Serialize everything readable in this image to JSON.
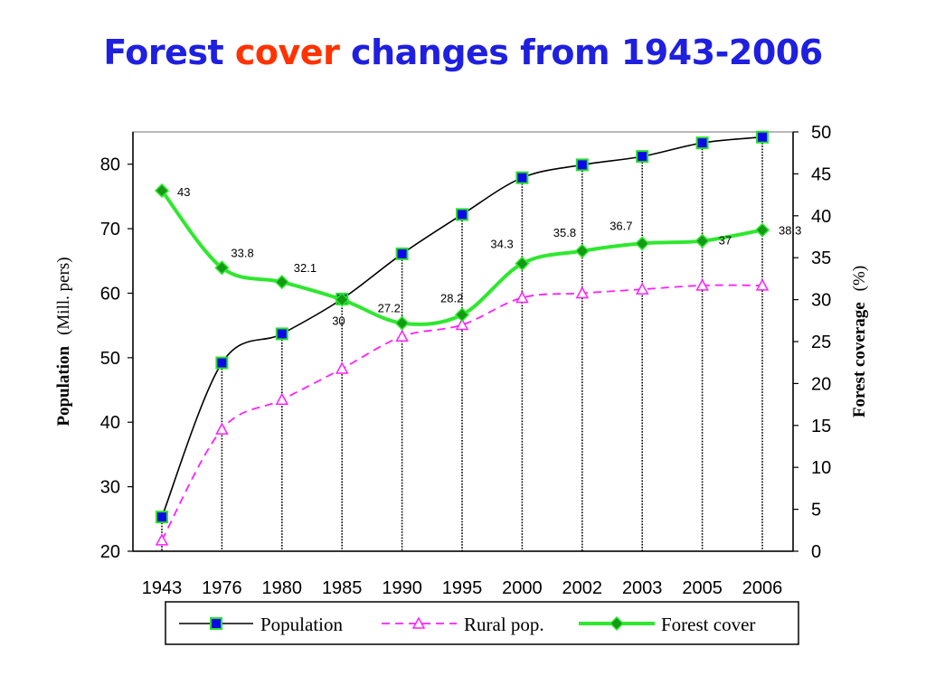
{
  "title": {
    "part1": "Forest ",
    "part2": "cover",
    "part3": " changes from 1943-2006"
  },
  "colors": {
    "title": "#1f1fe0",
    "title_highlight": "#ff3300",
    "population_line": "#000000",
    "population_marker_fill": "#0a0ae6",
    "population_marker_edge": "#2adf2a",
    "rural_line": "#ff1fff",
    "forest_line": "#2ee82e",
    "forest_marker": "#149a14"
  },
  "chart_data": {
    "type": "line",
    "categories": [
      "1943",
      "1976",
      "1980",
      "1985",
      "1990",
      "1995",
      "2000",
      "2002",
      "2003",
      "2005",
      "2006"
    ],
    "y_left": {
      "label_bold": "Population",
      "label_unit": "(Mill. pers)",
      "range": [
        20,
        85
      ],
      "ticks": [
        "20",
        "30",
        "40",
        "50",
        "60",
        "70",
        "80"
      ]
    },
    "y_right": {
      "label_bold": "Forest coverage",
      "label_unit": "(%)",
      "range": [
        0,
        50
      ],
      "ticks": [
        "0",
        "5",
        "10",
        "15",
        "20",
        "25",
        "30",
        "35",
        "40",
        "45",
        "50"
      ]
    },
    "series": [
      {
        "name": "Population",
        "axis": "left",
        "values": [
          25.3,
          49.2,
          53.7,
          59.1,
          66.1,
          72.2,
          77.9,
          79.9,
          81.2,
          83.3,
          84.2
        ]
      },
      {
        "name": "Rural pop.",
        "axis": "left",
        "values": [
          21.7,
          38.9,
          43.5,
          48.3,
          53.3,
          55.1,
          59.3,
          60.0,
          60.6,
          61.2,
          61.2
        ]
      },
      {
        "name": "Forest cover",
        "axis": "right",
        "values": [
          43,
          33.8,
          32.1,
          30,
          27.2,
          28.2,
          34.3,
          35.8,
          36.7,
          37,
          38.3
        ],
        "data_labels": [
          "43",
          "33.8",
          "32.1",
          "30",
          "27.2",
          "28.2",
          "34.3",
          "35.8",
          "36.7",
          "37",
          "38.3"
        ]
      }
    ],
    "grid": false,
    "drop_lines": true,
    "legend_position": "bottom"
  }
}
